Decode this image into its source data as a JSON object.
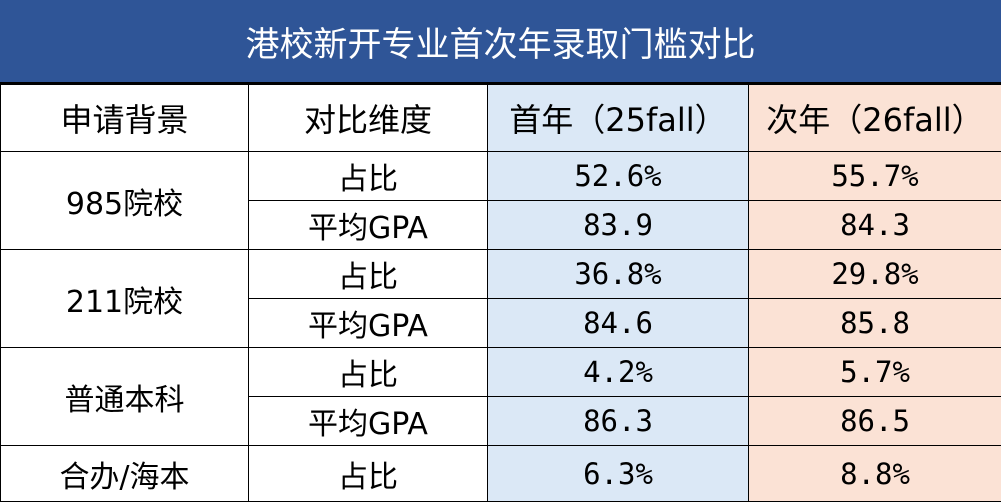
{
  "header": {
    "title": "港校新开专业首次年录取门槛对比"
  },
  "table": {
    "columns": [
      "申请背景",
      "对比维度",
      "首年（25fall）",
      "次年（26fall）"
    ],
    "groups": [
      {
        "name": "985院校",
        "rows": [
          [
            "占比",
            "52.6%",
            "55.7%"
          ],
          [
            "平均GPA",
            "83.9",
            "84.3"
          ]
        ]
      },
      {
        "name": "211院校",
        "rows": [
          [
            "占比",
            "36.8%",
            "29.8%"
          ],
          [
            "平均GPA",
            "84.6",
            "85.8"
          ]
        ]
      },
      {
        "name": "普通本科",
        "rows": [
          [
            "占比",
            "4.2%",
            "5.7%"
          ],
          [
            "平均GPA",
            "86.3",
            "86.5"
          ]
        ]
      },
      {
        "name": "合办/海本",
        "rows": [
          [
            "占比",
            "6.3%",
            "8.8%"
          ]
        ]
      }
    ]
  }
}
